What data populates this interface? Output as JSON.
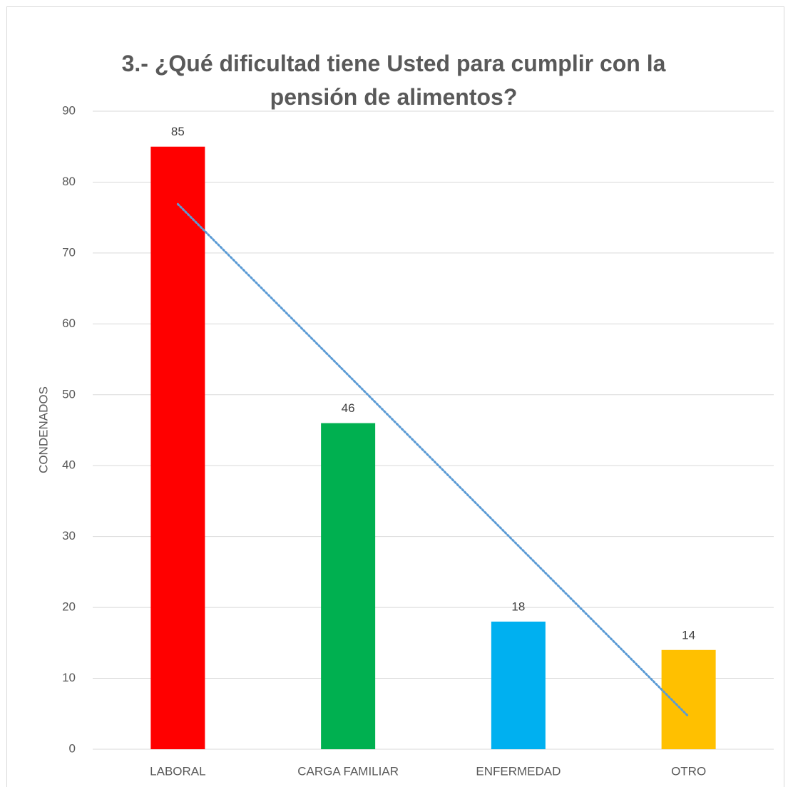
{
  "chart_data": {
    "type": "bar",
    "title": "3.- ¿Qué dificultad tiene Usted para cumplir con la pensión de alimentos?",
    "y_label": "CONDENADOS",
    "categories": [
      "LABORAL",
      "CARGA FAMILIAR",
      "ENFERMEDAD",
      "OTRO"
    ],
    "values": [
      85,
      46,
      18,
      14
    ],
    "colors": [
      "#ff0000",
      "#00b050",
      "#00b0f0",
      "#ffc000"
    ],
    "ylim": [
      0,
      90
    ],
    "yticks": [
      0,
      10,
      20,
      30,
      40,
      50,
      60,
      70,
      80,
      90
    ],
    "grid": true,
    "trendline": "linear",
    "trendline_color": "#5b9bd5"
  }
}
